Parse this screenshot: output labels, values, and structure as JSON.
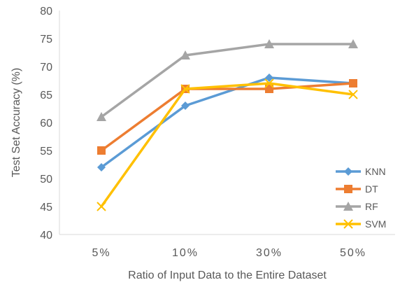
{
  "chart_data": {
    "type": "line",
    "title": "",
    "xlabel": "Ratio of Input Data to the Entire Dataset",
    "ylabel": "Test Set Accuracy (%)",
    "categories": [
      "5%",
      "10%",
      "30%",
      "50%"
    ],
    "ylim": [
      40,
      80
    ],
    "yticks": [
      40,
      45,
      50,
      55,
      60,
      65,
      70,
      75,
      80
    ],
    "grid": false,
    "legend_position": "bottom-right",
    "series": [
      {
        "name": "KNN",
        "values": [
          52,
          63,
          68,
          67
        ],
        "color": "#5B9BD5",
        "marker": "diamond"
      },
      {
        "name": "DT",
        "values": [
          55,
          66,
          66,
          67
        ],
        "color": "#ED7D31",
        "marker": "square"
      },
      {
        "name": "RF",
        "values": [
          61,
          72,
          74,
          74
        ],
        "color": "#A5A5A5",
        "marker": "triangle"
      },
      {
        "name": "SVM",
        "values": [
          45,
          66,
          67,
          65
        ],
        "color": "#FFC000",
        "marker": "x"
      }
    ]
  }
}
